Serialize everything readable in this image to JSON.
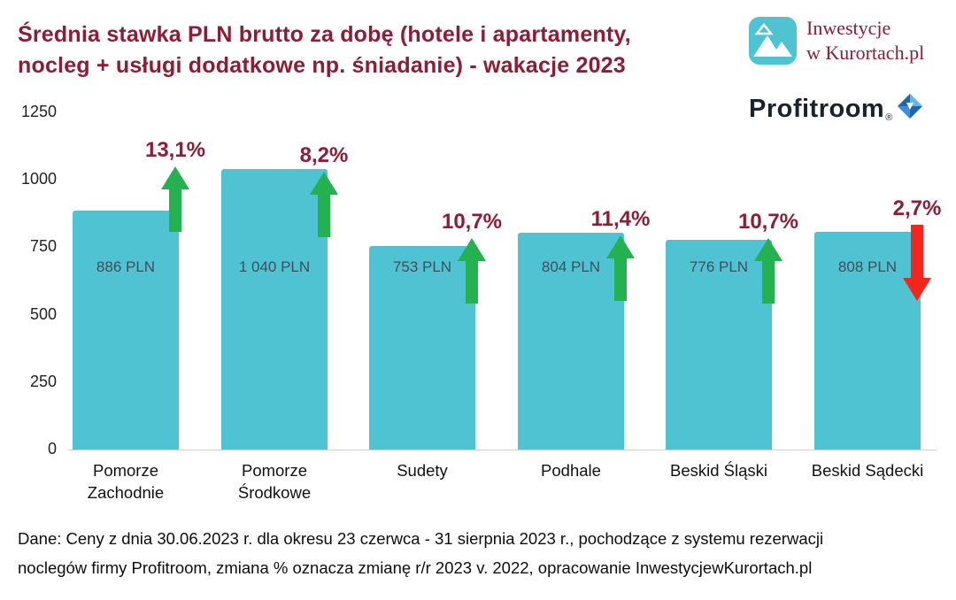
{
  "title": {
    "line1": "Średnia stawka PLN brutto za dobę (hotele i apartamenty,",
    "line2": "nocleg + usługi dodatkowe np. śniadanie) - wakacje 2023"
  },
  "logos": {
    "kurorty": {
      "line1": "Inwestycje",
      "line2": "w Kurortach.pl",
      "icon": "mountain-icon",
      "color": "#8e1c35"
    },
    "profitroom": {
      "text": "Profitroom",
      "reg": "®",
      "icon": "diamond-icon",
      "color": "#19222e"
    }
  },
  "chart_data": {
    "type": "bar",
    "title": "Średnia stawka PLN brutto za dobę (hotele i apartamenty, nocleg + usługi dodatkowe np. śniadanie) - wakacje 2023",
    "categories": [
      "Pomorze Zachodnie",
      "Pomorze Środkowe",
      "Sudety",
      "Podhale",
      "Beskid Śląski",
      "Beskid Sądecki"
    ],
    "values": [
      886,
      1040,
      753,
      804,
      776,
      808
    ],
    "value_labels": [
      "886 PLN",
      "1 040 PLN",
      "753 PLN",
      "804 PLN",
      "776 PLN",
      "808 PLN"
    ],
    "change_labels": [
      "13,1%",
      "8,2%",
      "10,7%",
      "11,4%",
      "10,7%",
      "2,7%"
    ],
    "change_direction": [
      "up",
      "up",
      "up",
      "up",
      "up",
      "down"
    ],
    "y_ticks": [
      0,
      250,
      500,
      750,
      1000,
      1250
    ],
    "ylim": [
      0,
      1250
    ],
    "grid": false,
    "legend": "none",
    "bar_color": "#4fc3d1",
    "up_color": "#25b14f",
    "down_color": "#f2261c",
    "percent_label_color": "#8e1c35",
    "value_label_color": "#3d4f5e"
  },
  "footer": {
    "line1": "Dane: Ceny z dnia 30.06.2023 r. dla okresu 23 czerwca - 31 sierpnia 2023 r., pochodzące z systemu rezerwacji",
    "line2": "noclegów firmy Profitroom,  zmiana % oznacza zmianę r/r 2023 v. 2022, opracowanie InwestycjewKurortach.pl"
  }
}
